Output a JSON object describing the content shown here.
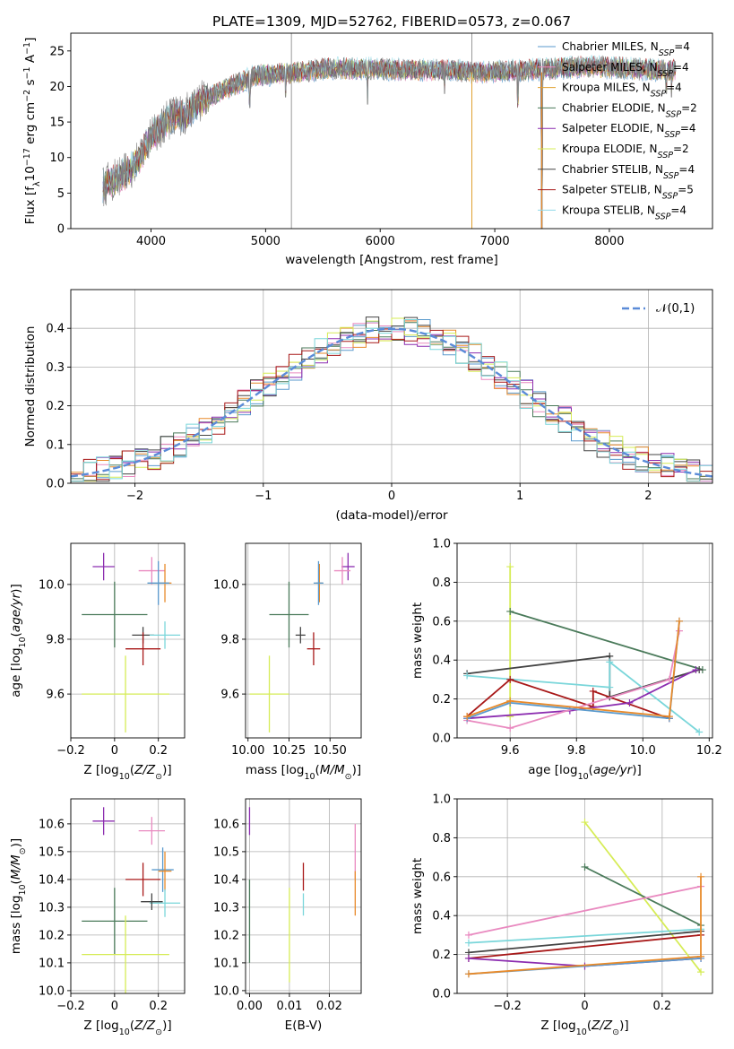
{
  "title": "PLATE=1309, MJD=52762, FIBERID=0573, z=0.067",
  "colors": [
    "#4c9aa8",
    "#e886b5",
    "#e0a030",
    "#4a7a5a",
    "#9b3ab0",
    "#d4e85a",
    "#444444",
    "#a01818",
    "#8fd8e8"
  ],
  "ssp_colors": {
    "Chabrier MILES": "#5a9acd",
    "Salpeter MILES": "#e98ac0",
    "Kroupa MILES": "#e88a2a",
    "Chabrier ELODIE": "#4a7a5a",
    "Salpeter ELODIE": "#8c2db0",
    "Kroupa ELODIE": "#d6ec56",
    "Chabrier STELIB": "#444444",
    "Salpeter STELIB": "#a81818",
    "Kroupa STELIB": "#7ad6da"
  },
  "chart_data": [
    {
      "type": "line",
      "panel": "spectrum",
      "xlabel": "wavelength [Angstrom, rest frame]",
      "ylabel": "Flux [f_λ10^-17 erg cm^-2 s^-1 A^-1]",
      "xlim": [
        3300,
        8900
      ],
      "ylim": [
        0,
        27.5
      ],
      "xticks": [
        4000,
        5000,
        6000,
        7000,
        8000
      ],
      "yticks": [
        0,
        5,
        10,
        15,
        20,
        25
      ],
      "grid": false,
      "legend_position": "right",
      "legend": [
        {
          "name": "Chabrier MILES",
          "nssp": "4",
          "color": "#5a9acd"
        },
        {
          "name": "Salpeter MILES",
          "nssp": "4",
          "color": "#e98ac0"
        },
        {
          "name": "Kroupa MILES",
          "nssp": "4",
          "color": "#e0a030"
        },
        {
          "name": "Chabrier ELODIE",
          "nssp": "2",
          "color": "#4a7a5a"
        },
        {
          "name": "Salpeter ELODIE",
          "nssp": "4",
          "color": "#8c2db0"
        },
        {
          "name": "Kroupa ELODIE",
          "nssp": "2",
          "color": "#d6ec56"
        },
        {
          "name": "Chabrier STELIB",
          "nssp": "4",
          "color": "#444444"
        },
        {
          "name": "Salpeter STELIB",
          "nssp": "5",
          "color": "#a81818"
        },
        {
          "name": "Kroupa STELIB",
          "nssp": "4",
          "color": "#8fd8e8"
        }
      ],
      "continuum": [
        [
          3580,
          6
        ],
        [
          3700,
          7
        ],
        [
          3800,
          8
        ],
        [
          3900,
          10
        ],
        [
          4000,
          13
        ],
        [
          4100,
          14.5
        ],
        [
          4200,
          16
        ],
        [
          4300,
          16
        ],
        [
          4400,
          17.5
        ],
        [
          4500,
          18.5
        ],
        [
          4700,
          20
        ],
        [
          4900,
          21.5
        ],
        [
          5100,
          21.8
        ],
        [
          5300,
          22
        ],
        [
          5500,
          22.5
        ],
        [
          5700,
          22.5
        ],
        [
          6000,
          22.5
        ],
        [
          6300,
          22.3
        ],
        [
          6600,
          22.3
        ],
        [
          6900,
          22
        ],
        [
          7200,
          22.2
        ],
        [
          7500,
          22.5
        ],
        [
          7800,
          22.8
        ],
        [
          8100,
          22.6
        ],
        [
          8400,
          22.3
        ],
        [
          8580,
          22.2
        ]
      ],
      "absorption_lines": [
        [
          3934,
          9
        ],
        [
          3969,
          10
        ],
        [
          4102,
          14
        ],
        [
          4304,
          15
        ],
        [
          4341,
          15
        ],
        [
          4861,
          17
        ],
        [
          5175,
          18.5
        ],
        [
          5890,
          17.5
        ],
        [
          6563,
          19
        ],
        [
          7200,
          17
        ],
        [
          7410,
          0
        ],
        [
          8498,
          19
        ],
        [
          8542,
          18.5
        ],
        [
          8662,
          17
        ]
      ]
    },
    {
      "type": "line",
      "panel": "residual histogram",
      "xlabel": "(data-model)/error",
      "ylabel": "Normed distribution",
      "xlim": [
        -2.5,
        2.5
      ],
      "ylim": [
        0,
        0.5
      ],
      "xticks": [
        -2,
        -1,
        0,
        1,
        2
      ],
      "yticks": [
        0.0,
        0.1,
        0.2,
        0.3,
        0.4
      ],
      "grid": true,
      "legend_position": "top-right",
      "legend_label": "𝒩(0,1)",
      "series_label": "𝒩(0,1)",
      "reference_curve": "N(0,1)",
      "bin_width": 0.1,
      "histogram_envelope_peak": 0.4,
      "n_histograms": 9
    },
    {
      "type": "scatter",
      "panel": "age vs Z",
      "xlabel": "Z [log10(Z/Z⊙)]",
      "ylabel": "age [log10(age/yr)]",
      "xlim": [
        -0.2,
        0.32
      ],
      "ylim": [
        9.44,
        10.15
      ],
      "xticks": [
        -0.2,
        0.0,
        0.2
      ],
      "yticks": [
        9.6,
        9.8,
        10.0
      ],
      "grid": true,
      "points": [
        {
          "ssp": "Salpeter ELODIE",
          "x": -0.05,
          "y": 10.065,
          "xerr": 0.05,
          "yerr": 0.05
        },
        {
          "ssp": "Salpeter MILES",
          "x": 0.17,
          "y": 10.05,
          "xerr": 0.06,
          "yerr": 0.05
        },
        {
          "ssp": "Kroupa MILES",
          "x": 0.23,
          "y": 10.005,
          "xerr": 0.03,
          "yerr": 0.07
        },
        {
          "ssp": "Chabrier MILES",
          "x": 0.2,
          "y": 10.005,
          "xerr": 0.05,
          "yerr": 0.08
        },
        {
          "ssp": "Chabrier ELODIE",
          "x": 0.0,
          "y": 9.89,
          "xerr": 0.15,
          "yerr": 0.12
        },
        {
          "ssp": "Chabrier STELIB",
          "x": 0.13,
          "y": 9.815,
          "xerr": 0.05,
          "yerr": 0.03
        },
        {
          "ssp": "Kroupa STELIB",
          "x": 0.23,
          "y": 9.815,
          "xerr": 0.07,
          "yerr": 0.05
        },
        {
          "ssp": "Salpeter STELIB",
          "x": 0.13,
          "y": 9.765,
          "xerr": 0.08,
          "yerr": 0.06
        },
        {
          "ssp": "Kroupa ELODIE",
          "x": 0.05,
          "y": 9.6,
          "xerr": 0.2,
          "yerr": 0.14
        }
      ]
    },
    {
      "type": "scatter",
      "panel": "age vs mass",
      "xlabel": "mass [log10(M/M⊙)]",
      "ylabel": "",
      "xlim": [
        9.985,
        10.69
      ],
      "ylim": [
        9.44,
        10.15
      ],
      "xticks": [
        10.0,
        10.25,
        10.5
      ],
      "yticks": [
        9.6,
        9.8,
        10.0
      ],
      "grid": true,
      "points": [
        {
          "ssp": "Salpeter ELODIE",
          "x": 10.61,
          "y": 10.065,
          "xerr": 0.04,
          "yerr": 0.05
        },
        {
          "ssp": "Salpeter MILES",
          "x": 10.575,
          "y": 10.05,
          "xerr": 0.05,
          "yerr": 0.05
        },
        {
          "ssp": "Kroupa MILES",
          "x": 10.435,
          "y": 10.005,
          "xerr": 0.02,
          "yerr": 0.07
        },
        {
          "ssp": "Chabrier MILES",
          "x": 10.43,
          "y": 10.005,
          "xerr": 0.03,
          "yerr": 0.08
        },
        {
          "ssp": "Chabrier ELODIE",
          "x": 10.25,
          "y": 9.89,
          "xerr": 0.12,
          "yerr": 0.12
        },
        {
          "ssp": "Chabrier STELIB",
          "x": 10.32,
          "y": 9.815,
          "xerr": 0.03,
          "yerr": 0.03
        },
        {
          "ssp": "Salpeter STELIB",
          "x": 10.4,
          "y": 9.765,
          "xerr": 0.04,
          "yerr": 0.06
        },
        {
          "ssp": "Kroupa ELODIE",
          "x": 10.13,
          "y": 9.6,
          "xerr": 0.12,
          "yerr": 0.14
        }
      ]
    },
    {
      "type": "line",
      "panel": "mass weight vs age",
      "xlabel": "age [log10(age/yr)]",
      "ylabel": "mass weight",
      "xlim": [
        9.44,
        10.21
      ],
      "ylim": [
        0,
        1
      ],
      "xticks": [
        9.6,
        9.8,
        10.0,
        10.2
      ],
      "yticks": [
        0.0,
        0.2,
        0.4,
        0.6,
        0.8,
        1.0
      ],
      "grid": true,
      "series": [
        {
          "ssp": "Kroupa ELODIE",
          "x": [
            9.6,
            9.6
          ],
          "y": [
            0.88,
            0.11
          ]
        },
        {
          "ssp": "Chabrier ELODIE",
          "x": [
            9.6,
            10.18
          ],
          "y": [
            0.65,
            0.35
          ]
        },
        {
          "ssp": "Chabrier STELIB",
          "x": [
            9.47,
            9.9,
            9.9,
            10.17
          ],
          "y": [
            0.33,
            0.42,
            0.21,
            0.35
          ]
        },
        {
          "ssp": "Kroupa STELIB",
          "x": [
            9.47,
            9.9,
            9.9,
            10.17
          ],
          "y": [
            0.32,
            0.26,
            0.39,
            0.03
          ]
        },
        {
          "ssp": "Salpeter STELIB",
          "x": [
            9.47,
            9.6,
            9.85,
            9.85,
            10.08
          ],
          "y": [
            0.11,
            0.3,
            0.16,
            0.24,
            0.1
          ]
        },
        {
          "ssp": "Salpeter ELODIE",
          "x": [
            9.47,
            9.78,
            9.96,
            10.16
          ],
          "y": [
            0.1,
            0.14,
            0.18,
            0.35
          ]
        },
        {
          "ssp": "Salpeter MILES",
          "x": [
            9.47,
            9.6,
            10.08,
            10.11
          ],
          "y": [
            0.09,
            0.05,
            0.3,
            0.55
          ]
        },
        {
          "ssp": "Chabrier MILES",
          "x": [
            9.47,
            9.6,
            10.08,
            10.11
          ],
          "y": [
            0.1,
            0.18,
            0.1,
            0.6
          ]
        },
        {
          "ssp": "Kroupa MILES",
          "x": [
            9.47,
            9.6,
            10.08,
            10.11
          ],
          "y": [
            0.11,
            0.19,
            0.11,
            0.6
          ]
        }
      ]
    },
    {
      "type": "scatter",
      "panel": "mass vs Z",
      "xlabel": "Z [log10(Z/Z⊙)]",
      "ylabel": "mass [log10(M/M⊙)]",
      "xlim": [
        -0.2,
        0.32
      ],
      "ylim": [
        9.99,
        10.69
      ],
      "xticks": [
        -0.2,
        0.0,
        0.2
      ],
      "yticks": [
        10.0,
        10.1,
        10.2,
        10.3,
        10.4,
        10.5,
        10.6
      ],
      "grid": true,
      "points": [
        {
          "ssp": "Salpeter ELODIE",
          "x": -0.05,
          "y": 10.61,
          "xerr": 0.05,
          "yerr": 0.05
        },
        {
          "ssp": "Salpeter MILES",
          "x": 0.17,
          "y": 10.575,
          "xerr": 0.06,
          "yerr": 0.05
        },
        {
          "ssp": "Chabrier MILES",
          "x": 0.22,
          "y": 10.435,
          "xerr": 0.05,
          "yerr": 0.08
        },
        {
          "ssp": "Kroupa MILES",
          "x": 0.23,
          "y": 10.43,
          "xerr": 0.03,
          "yerr": 0.07
        },
        {
          "ssp": "Salpeter STELIB",
          "x": 0.13,
          "y": 10.4,
          "xerr": 0.08,
          "yerr": 0.06
        },
        {
          "ssp": "Kroupa STELIB",
          "x": 0.23,
          "y": 10.315,
          "xerr": 0.07,
          "yerr": 0.05
        },
        {
          "ssp": "Chabrier STELIB",
          "x": 0.17,
          "y": 10.32,
          "xerr": 0.05,
          "yerr": 0.03
        },
        {
          "ssp": "Chabrier ELODIE",
          "x": 0.0,
          "y": 10.25,
          "xerr": 0.15,
          "yerr": 0.12
        },
        {
          "ssp": "Kroupa ELODIE",
          "x": 0.05,
          "y": 10.13,
          "xerr": 0.2,
          "yerr": 0.14
        }
      ]
    },
    {
      "type": "scatter",
      "panel": "mass vs E(B-V)",
      "xlabel": "E(B-V)",
      "ylabel": "",
      "xlim": [
        -0.001,
        0.028
      ],
      "ylim": [
        9.99,
        10.69
      ],
      "xticks": [
        0.0,
        0.01,
        0.02
      ],
      "yticks": [
        10.0,
        10.1,
        10.2,
        10.3,
        10.4,
        10.5,
        10.6
      ],
      "grid": true,
      "points": [
        {
          "ssp": "Salpeter ELODIE",
          "x": 0.0,
          "y": 10.61,
          "yerr": 0.05
        },
        {
          "ssp": "Chabrier ELODIE",
          "x": 0.0,
          "y": 10.25,
          "yerr": 0.15
        },
        {
          "ssp": "Kroupa ELODIE",
          "x": 0.01,
          "y": 10.2,
          "yerr": 0.17
        },
        {
          "ssp": "Salpeter STELIB",
          "x": 0.0135,
          "y": 10.41,
          "yerr": 0.05
        },
        {
          "ssp": "Kroupa STELIB",
          "x": 0.0135,
          "y": 10.31,
          "yerr": 0.04
        },
        {
          "ssp": "Salpeter MILES",
          "x": 0.0265,
          "y": 10.5,
          "yerr": 0.1
        },
        {
          "ssp": "Kroupa MILES",
          "x": 0.0265,
          "y": 10.35,
          "yerr": 0.08
        }
      ]
    },
    {
      "type": "line",
      "panel": "mass weight vs Z",
      "xlabel": "Z [log10(Z/Z⊙)]",
      "ylabel": "mass weight",
      "xlim": [
        -0.33,
        0.33
      ],
      "ylim": [
        0,
        1
      ],
      "xticks": [
        -0.2,
        0.0,
        0.2
      ],
      "yticks": [
        0.0,
        0.2,
        0.4,
        0.6,
        0.8,
        1.0
      ],
      "grid": true,
      "series": [
        {
          "ssp": "Kroupa ELODIE",
          "x": [
            0.0,
            0.3
          ],
          "y": [
            0.88,
            0.11
          ]
        },
        {
          "ssp": "Chabrier ELODIE",
          "x": [
            0.0,
            0.3
          ],
          "y": [
            0.65,
            0.35
          ]
        },
        {
          "ssp": "Salpeter MILES",
          "x": [
            -0.3,
            0.3
          ],
          "y": [
            0.3,
            0.55
          ]
        },
        {
          "ssp": "Kroupa STELIB",
          "x": [
            -0.3,
            0.3
          ],
          "y": [
            0.26,
            0.33
          ]
        },
        {
          "ssp": "Chabrier STELIB",
          "x": [
            -0.3,
            0.3
          ],
          "y": [
            0.21,
            0.32
          ]
        },
        {
          "ssp": "Salpeter STELIB",
          "x": [
            -0.3,
            0.3
          ],
          "y": [
            0.18,
            0.3
          ]
        },
        {
          "ssp": "Salpeter ELODIE",
          "x": [
            -0.3,
            0.0,
            0.3
          ],
          "y": [
            0.18,
            0.14,
            0.18
          ]
        },
        {
          "ssp": "Chabrier MILES",
          "x": [
            -0.3,
            0.3
          ],
          "y": [
            0.1,
            0.18
          ]
        },
        {
          "ssp": "Kroupa MILES",
          "x": [
            -0.3,
            0.3,
            0.3
          ],
          "y": [
            0.1,
            0.19,
            0.6
          ]
        }
      ]
    }
  ]
}
